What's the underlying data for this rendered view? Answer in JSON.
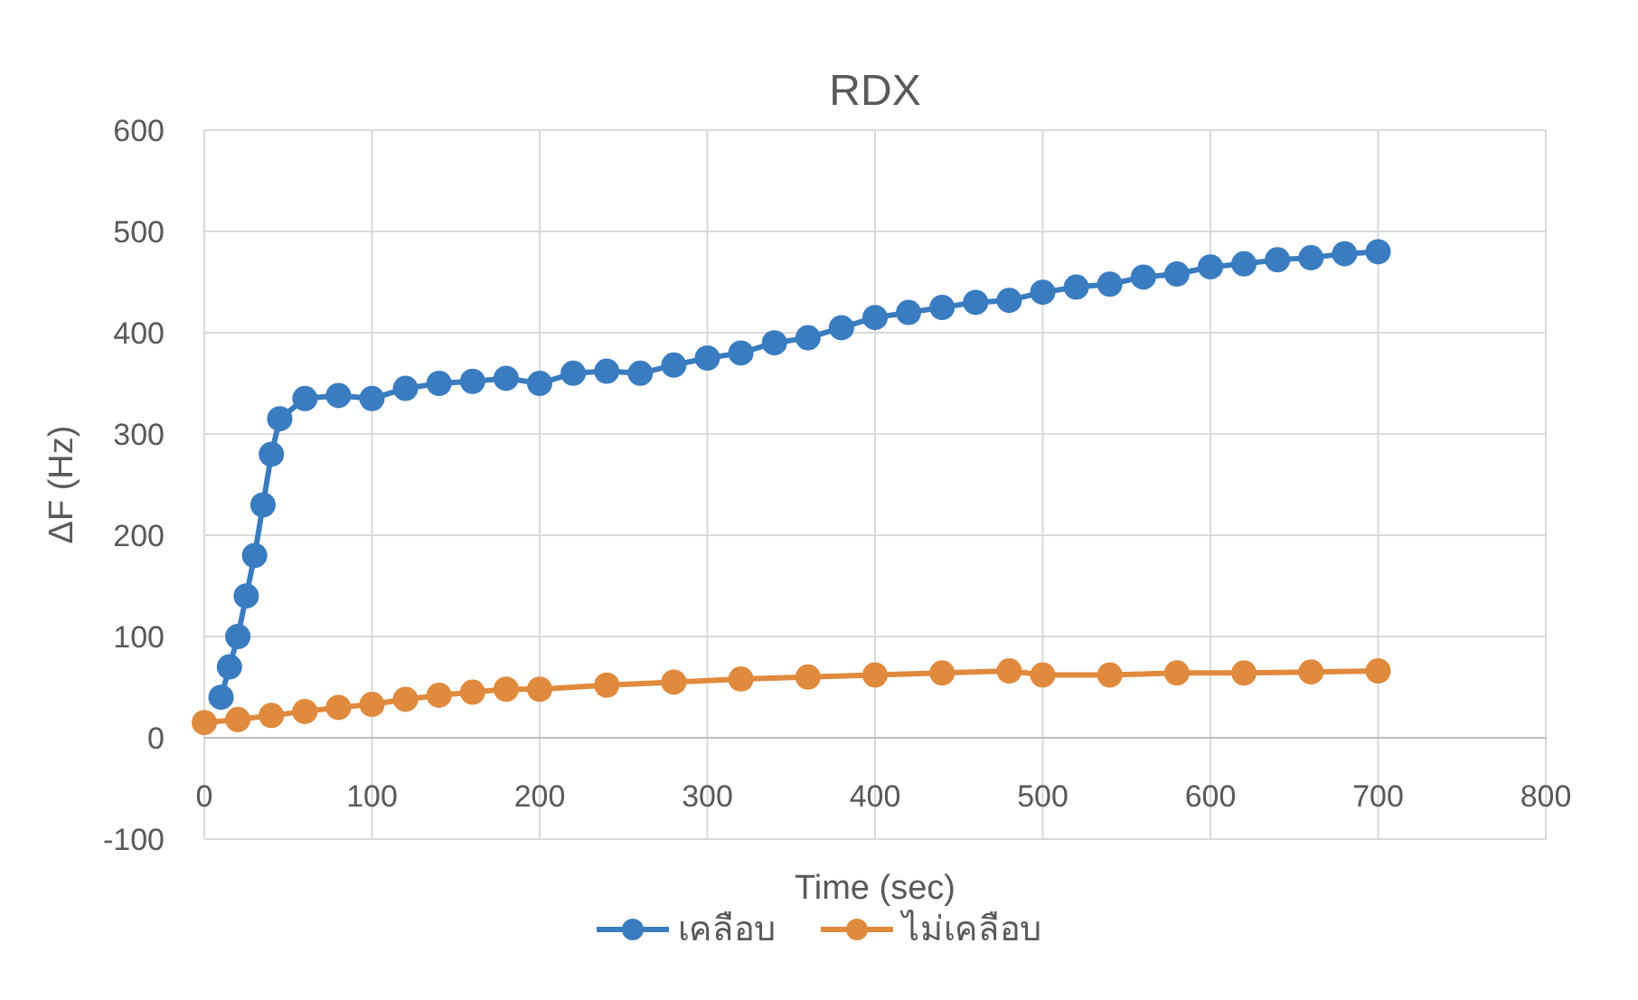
{
  "chart_data": {
    "type": "line",
    "title": "RDX",
    "xlabel": "Time (sec)",
    "ylabel": "ΔF (Hz)",
    "xlim": [
      0,
      800
    ],
    "xticks": [
      0,
      100,
      200,
      300,
      400,
      500,
      600,
      700,
      800
    ],
    "ylim": [
      -100,
      600
    ],
    "yticks": [
      -100,
      0,
      100,
      200,
      300,
      400,
      500,
      600
    ],
    "grid": true,
    "legend": "bottom",
    "marker": "circle",
    "line_style": "solid",
    "series": [
      {
        "name": "เคลือบ",
        "color": "#3a7cc0",
        "x": [
          10,
          15,
          20,
          25,
          30,
          35,
          40,
          45,
          60,
          80,
          100,
          120,
          140,
          160,
          180,
          200,
          220,
          240,
          260,
          280,
          300,
          320,
          340,
          360,
          380,
          400,
          420,
          440,
          460,
          480,
          500,
          520,
          540,
          560,
          580,
          600,
          620,
          640,
          660,
          680,
          700
        ],
        "values": [
          40,
          70,
          100,
          140,
          180,
          230,
          280,
          315,
          335,
          338,
          335,
          345,
          350,
          352,
          355,
          350,
          360,
          362,
          360,
          368,
          375,
          380,
          390,
          395,
          405,
          415,
          420,
          425,
          430,
          432,
          440,
          445,
          448,
          455,
          458,
          465,
          468,
          472,
          474,
          478,
          480
        ]
      },
      {
        "name": "ไม่เคลือบ",
        "color": "#e08a3e",
        "x": [
          0,
          20,
          40,
          60,
          80,
          100,
          120,
          140,
          160,
          180,
          200,
          240,
          280,
          320,
          360,
          400,
          440,
          480,
          500,
          540,
          580,
          620,
          660,
          700
        ],
        "values": [
          15,
          18,
          22,
          26,
          30,
          33,
          38,
          42,
          45,
          48,
          48,
          52,
          55,
          58,
          60,
          62,
          64,
          66,
          62,
          62,
          64,
          64,
          65,
          66
        ]
      }
    ]
  }
}
